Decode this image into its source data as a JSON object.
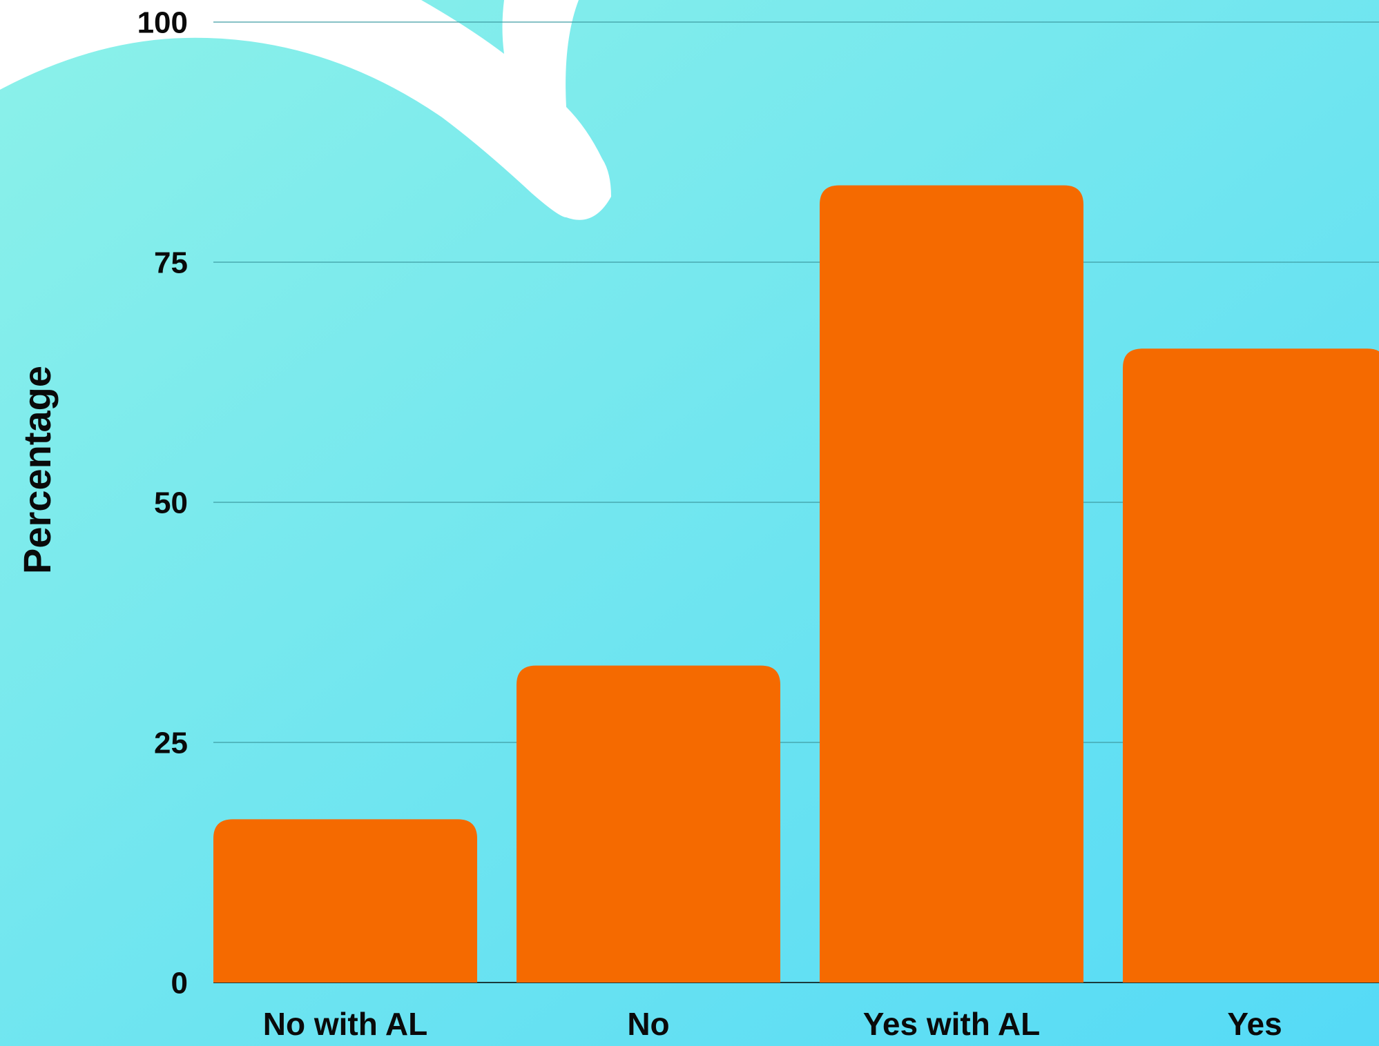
{
  "chart_data": {
    "type": "bar",
    "y_label": "Percentage",
    "categories": [
      "No with AL",
      "No",
      "Yes with AL",
      "Yes"
    ],
    "values": [
      17,
      33,
      83,
      66
    ],
    "color": "#f56a00",
    "ylim": [
      0,
      100
    ],
    "yticks": [
      0,
      25,
      50,
      75,
      100
    ],
    "grid": true
  }
}
